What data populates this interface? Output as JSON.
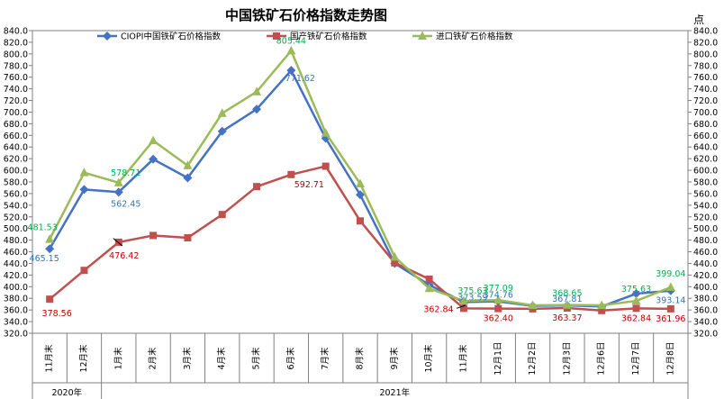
{
  "chart_data": {
    "type": "line",
    "title": "中国铁矿石价格指数走势图",
    "right_axis_label": "点",
    "ylim": [
      320,
      840
    ],
    "ytick_step": 20,
    "categories": [
      "11月末",
      "12月末",
      "1月末",
      "2月末",
      "3月末",
      "4月末",
      "5月末",
      "6月末",
      "7月末",
      "8月末",
      "9月末",
      "10月末",
      "11月末",
      "12月1日",
      "12月2日",
      "12月3日",
      "12月6日",
      "12月7日",
      "12月8日"
    ],
    "year_groups": [
      {
        "label": "2020年",
        "start": 0,
        "end": 1
      },
      {
        "label": "2021年",
        "start": 2,
        "end": 18
      }
    ],
    "legend_position": "top",
    "series": [
      {
        "name": "CIOPI中国铁矿石价格指数",
        "color": "#4472C4",
        "marker": "diamond",
        "values": [
          465.15,
          567,
          562.45,
          619,
          587,
          667,
          705,
          771.62,
          655,
          558,
          440,
          403,
          373.59,
          374.76,
          367,
          367.81,
          366,
          388,
          393.14
        ],
        "labels": [
          {
            "i": 0,
            "text": "465.15"
          },
          {
            "i": 2,
            "text": "562.45"
          },
          {
            "i": 7,
            "text": "771.62"
          },
          {
            "i": 12,
            "text": "373.59"
          },
          {
            "i": 13,
            "text": "374.76"
          },
          {
            "i": 15,
            "text": "367.81"
          },
          {
            "i": 18,
            "text": "393.14"
          }
        ]
      },
      {
        "name": "国产铁矿石价格指数",
        "color": "#C0504D",
        "marker": "square",
        "values": [
          378.56,
          428,
          476.42,
          488,
          484,
          524,
          572,
          592.71,
          607,
          513,
          441,
          413,
          362.84,
          362.4,
          362,
          363.37,
          359,
          362.84,
          361.96
        ],
        "labels": [
          {
            "i": 0,
            "text": "378.56"
          },
          {
            "i": 2,
            "text": "476.42"
          },
          {
            "i": 7,
            "text": "592.71"
          },
          {
            "i": 12,
            "text": "362.84"
          },
          {
            "i": 13,
            "text": "362.40"
          },
          {
            "i": 15,
            "text": "363.37"
          },
          {
            "i": 17,
            "text": "362.84"
          },
          {
            "i": 18,
            "text": "361.96"
          }
        ]
      },
      {
        "name": "进口铁矿石价格指数",
        "color": "#9BBB59",
        "marker": "triangle",
        "values": [
          481.53,
          596,
          578.71,
          651,
          608,
          698,
          735,
          805.44,
          664,
          577,
          451,
          397,
          375.63,
          377.09,
          368,
          368.65,
          368,
          375.63,
          399.04
        ],
        "labels": [
          {
            "i": 0,
            "text": "481.53"
          },
          {
            "i": 2,
            "text": "578.71"
          },
          {
            "i": 7,
            "text": "805.44"
          },
          {
            "i": 12,
            "text": "375.63"
          },
          {
            "i": 13,
            "text": "377.09"
          },
          {
            "i": 15,
            "text": "368.65"
          },
          {
            "i": 17,
            "text": "375.63"
          },
          {
            "i": 18,
            "text": "399.04"
          }
        ]
      }
    ]
  }
}
